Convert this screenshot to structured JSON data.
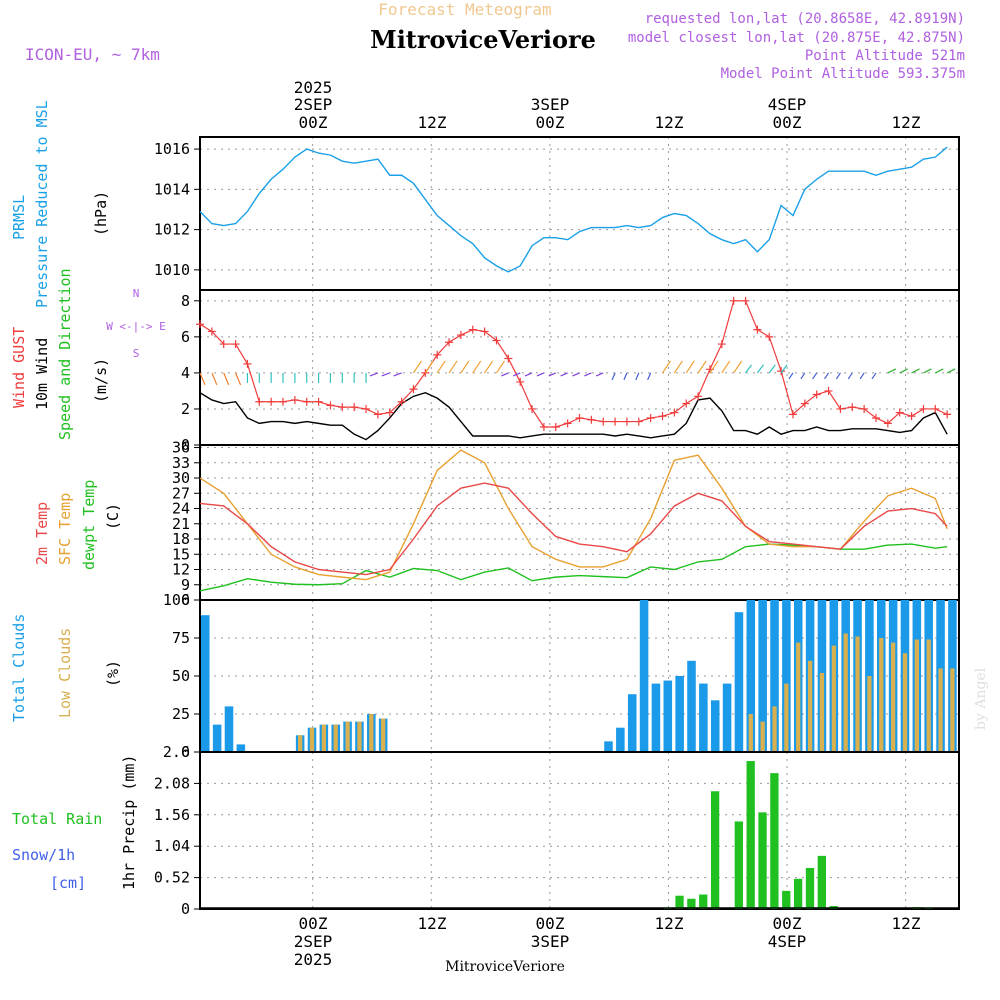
{
  "header": {
    "forecast_title": "Forecast Meteogram",
    "location_title": "MitroviceVeriore",
    "model": "ICON-EU, ~ 7km",
    "requested": "requested lon,lat (20.8658E, 42.8919N)",
    "closest": "model closest lon,lat (20.875E, 42.875N)",
    "point_alt": "Point Altitude 521m",
    "model_alt": "Model Point Altitude 593.375m",
    "footer": "MitroviceVeriore",
    "credit": "by Angel"
  },
  "time_axis": {
    "top": {
      "year": "2025",
      "day1": "2SEP",
      "day2": "3SEP",
      "day3": "4SEP",
      "ticks": [
        "00Z",
        "12Z",
        "00Z",
        "12Z",
        "00Z",
        "12Z"
      ]
    },
    "bottom": {
      "ticks": [
        "00Z",
        "12Z",
        "00Z",
        "12Z",
        "00Z",
        "12Z"
      ],
      "day1": "2SEP",
      "day2": "3SEP",
      "day3": "4SEP",
      "year": "2025"
    }
  },
  "panels": {
    "pressure": {
      "label1": "PRMSL",
      "label2": "Pressure Reduced to MSL",
      "unit": "(hPa)"
    },
    "wind": {
      "label1": "Wind GUST",
      "label2": "10m Wind",
      "label3": "Speed and Direction",
      "unit": "(m/s)",
      "compass_n": "N",
      "compass_s": "S",
      "compass_w": "W <-|-> E"
    },
    "temp": {
      "label1": "2m Temp",
      "label2": "SFC Temp",
      "label3": "dewpt Temp",
      "unit": "(C)"
    },
    "clouds": {
      "label1": "Total Clouds",
      "label2": "Low Clouds",
      "unit": "(%)"
    },
    "precip": {
      "label1": "Total  Rain",
      "label2": "Snow/1h",
      "label3": "[cm]",
      "unit": "1hr Precip (mm)"
    }
  },
  "colors": {
    "pressure": "#1aa0e8",
    "gust": "#f03c3c",
    "wind": "#000000",
    "temp2m": "#e84848",
    "sfc": "#e8a030",
    "dew": "#20c020",
    "total_clouds": "#1a9ae8",
    "low_clouds": "#d8b050",
    "precip": "#20c020",
    "title_orange": "#f0c080",
    "purple": "#b060e0"
  },
  "chart_data": [
    {
      "type": "line",
      "name": "PRMSL",
      "title": "Pressure Reduced to MSL",
      "ylabel": "hPa",
      "ylim": [
        1009,
        1016.6
      ],
      "yticks": [
        1010,
        1012,
        1014,
        1016
      ],
      "x": [
        0,
        1,
        2,
        3,
        4,
        5,
        6,
        7,
        8,
        9,
        10,
        11,
        12,
        13,
        14,
        15,
        16,
        17,
        18,
        19,
        20,
        21,
        22,
        23,
        24,
        25,
        26,
        27,
        28,
        29,
        30,
        31,
        32,
        33,
        34,
        35,
        36,
        37,
        38,
        39,
        40,
        41,
        42,
        43,
        44,
        45,
        46,
        47,
        48,
        49,
        50,
        51,
        52,
        53,
        54,
        55,
        56,
        57,
        58,
        59,
        60,
        61,
        62,
        63
      ],
      "values": [
        1012.9,
        1012.3,
        1012.2,
        1012.3,
        1012.9,
        1013.8,
        1014.5,
        1015.0,
        1015.6,
        1016.0,
        1015.8,
        1015.7,
        1015.4,
        1015.3,
        1015.4,
        1015.5,
        1014.7,
        1014.7,
        1014.3,
        1013.5,
        1012.7,
        1012.2,
        1011.7,
        1011.3,
        1010.6,
        1010.2,
        1009.9,
        1010.2,
        1011.2,
        1011.6,
        1011.6,
        1011.5,
        1011.9,
        1012.1,
        1012.1,
        1012.1,
        1012.2,
        1012.1,
        1012.2,
        1012.6,
        1012.8,
        1012.7,
        1012.3,
        1011.8,
        1011.5,
        1011.3,
        1011.5,
        1010.9,
        1011.5,
        1013.2,
        1012.7,
        1014.0,
        1014.5,
        1014.9,
        1014.9,
        1014.9,
        1014.9,
        1014.7,
        1014.9,
        1015.0,
        1015.1,
        1015.5,
        1015.6,
        1016.1
      ]
    },
    {
      "type": "line",
      "name": "Wind",
      "title": "Wind GUST / 10m Wind Speed and Direction",
      "ylabel": "m/s",
      "ylim": [
        0,
        8.6
      ],
      "yticks": [
        0,
        2,
        4,
        6,
        8
      ],
      "x": [
        0,
        1,
        2,
        3,
        4,
        5,
        6,
        7,
        8,
        9,
        10,
        11,
        12,
        13,
        14,
        15,
        16,
        17,
        18,
        19,
        20,
        21,
        22,
        23,
        24,
        25,
        26,
        27,
        28,
        29,
        30,
        31,
        32,
        33,
        34,
        35,
        36,
        37,
        38,
        39,
        40,
        41,
        42,
        43,
        44,
        45,
        46,
        47,
        48,
        49,
        50,
        51,
        52,
        53,
        54,
        55,
        56,
        57,
        58,
        59,
        60,
        61,
        62,
        63
      ],
      "gust": [
        6.7,
        6.3,
        5.6,
        5.6,
        4.5,
        2.4,
        2.4,
        2.4,
        2.5,
        2.4,
        2.4,
        2.2,
        2.1,
        2.1,
        2.0,
        1.7,
        1.8,
        2.4,
        3.1,
        4.0,
        5.0,
        5.7,
        6.1,
        6.4,
        6.3,
        5.8,
        4.8,
        3.5,
        2.0,
        1.0,
        1.0,
        1.2,
        1.5,
        1.4,
        1.3,
        1.3,
        1.3,
        1.3,
        1.5,
        1.6,
        1.8,
        2.3,
        2.7,
        4.2,
        5.6,
        8.0,
        8.0,
        6.4,
        6.0,
        4.1,
        1.7,
        2.3,
        2.8,
        3.0,
        2.0,
        2.1,
        2.0,
        1.5,
        1.2,
        1.8,
        1.6,
        2.0,
        2.0,
        1.7
      ],
      "wind10m": [
        2.9,
        2.5,
        2.3,
        2.4,
        1.5,
        1.2,
        1.3,
        1.3,
        1.2,
        1.3,
        1.2,
        1.1,
        1.1,
        0.6,
        0.3,
        0.8,
        1.5,
        2.3,
        2.7,
        2.9,
        2.6,
        2.1,
        1.3,
        0.5,
        0.5,
        0.5,
        0.5,
        0.4,
        0.5,
        0.6,
        0.6,
        0.6,
        0.6,
        0.6,
        0.6,
        0.5,
        0.6,
        0.5,
        0.4,
        0.5,
        0.6,
        1.2,
        2.5,
        2.6,
        1.9,
        0.8,
        0.8,
        0.6,
        1.0,
        0.6,
        0.8,
        0.8,
        1.0,
        0.8,
        0.8,
        0.9,
        0.9,
        0.9,
        0.8,
        0.7,
        0.8,
        1.5,
        1.8,
        0.6
      ]
    },
    {
      "type": "line",
      "name": "Temperature",
      "title": "2m Temp / SFC Temp / dewpt Temp",
      "ylabel": "C",
      "ylim": [
        6,
        36.5
      ],
      "yticks": [
        6,
        9,
        12,
        15,
        18,
        21,
        24,
        27,
        30,
        33,
        36
      ],
      "x": [
        0,
        2,
        4,
        6,
        8,
        10,
        12,
        14,
        16,
        18,
        20,
        22,
        24,
        26,
        28,
        30,
        32,
        34,
        36,
        38,
        40,
        42,
        44,
        46,
        48,
        50,
        52,
        54,
        56,
        58,
        60,
        62,
        63
      ],
      "temp2m": [
        25.0,
        24.5,
        21.0,
        16.5,
        13.5,
        12.0,
        11.5,
        11.0,
        12.0,
        18.0,
        24.5,
        28.0,
        29.0,
        28.0,
        23.0,
        18.5,
        17.0,
        16.5,
        15.5,
        19.0,
        24.5,
        27.0,
        25.5,
        20.5,
        17.5,
        17.0,
        16.5,
        16.0,
        20.5,
        23.5,
        24.0,
        23.0,
        20.5
      ],
      "sfc": [
        30.0,
        27.0,
        21.0,
        15.0,
        12.5,
        11.0,
        10.5,
        10.0,
        11.5,
        21.0,
        31.5,
        35.5,
        33.0,
        24.0,
        16.5,
        14.0,
        12.5,
        12.5,
        14.0,
        22.0,
        33.5,
        34.5,
        28.0,
        20.5,
        17.0,
        16.5,
        16.5,
        16.0,
        21.5,
        26.5,
        28.0,
        26.0,
        20.0
      ],
      "dew": [
        7.8,
        8.8,
        10.2,
        9.5,
        9.1,
        9.0,
        9.2,
        11.8,
        10.5,
        12.2,
        11.8,
        10.0,
        11.5,
        12.3,
        9.8,
        10.5,
        10.8,
        10.6,
        10.4,
        12.5,
        12.0,
        13.5,
        14.0,
        16.5,
        17.0,
        16.8,
        16.5,
        16.0,
        16.0,
        16.8,
        17.0,
        16.2,
        16.5
      ]
    },
    {
      "type": "bar",
      "name": "Clouds",
      "title": "Total Clouds / Low Clouds",
      "ylabel": "%",
      "ylim": [
        0,
        100
      ],
      "yticks": [
        0,
        25,
        50,
        75,
        100
      ],
      "x": [
        0,
        1,
        2,
        3,
        4,
        5,
        6,
        7,
        8,
        9,
        10,
        11,
        12,
        13,
        14,
        15,
        16,
        17,
        18,
        19,
        20,
        21,
        22,
        23,
        24,
        25,
        26,
        27,
        28,
        29,
        30,
        31,
        32,
        33,
        34,
        35,
        36,
        37,
        38,
        39,
        40,
        41,
        42,
        43,
        44,
        45,
        46,
        47,
        48,
        49,
        50,
        51,
        52,
        53,
        54,
        55,
        56,
        57,
        58,
        59,
        60,
        61,
        62,
        63
      ],
      "total": [
        90,
        18,
        30,
        5,
        0,
        0,
        0,
        0,
        11,
        16,
        18,
        18,
        20,
        20,
        25,
        22,
        0,
        0,
        0,
        0,
        0,
        0,
        0,
        0,
        0,
        0,
        0,
        0,
        0,
        0,
        0,
        0,
        0,
        0,
        7,
        16,
        38,
        100,
        45,
        47,
        50,
        60,
        45,
        34,
        45,
        92,
        100,
        100,
        100,
        100,
        100,
        100,
        100,
        100,
        100,
        100,
        100,
        100,
        100,
        100,
        100,
        100,
        100,
        100
      ],
      "low": [
        0,
        0,
        0,
        0,
        0,
        0,
        0,
        0,
        11,
        16,
        18,
        18,
        20,
        20,
        25,
        22,
        0,
        0,
        0,
        0,
        0,
        0,
        0,
        0,
        0,
        0,
        0,
        0,
        0,
        0,
        0,
        0,
        0,
        0,
        0,
        0,
        0,
        0,
        0,
        0,
        0,
        0,
        0,
        0,
        0,
        0,
        25,
        20,
        30,
        45,
        72,
        60,
        52,
        70,
        78,
        76,
        50,
        75,
        72,
        65,
        74,
        74,
        55,
        55
      ]
    },
    {
      "type": "bar",
      "name": "Precipitation",
      "title": "1hr Precip",
      "ylabel": "mm",
      "ylim": [
        0,
        2.6
      ],
      "yticks": [
        0,
        0.52,
        1.04,
        1.56,
        2.08,
        2.6
      ],
      "x": [
        38,
        39,
        40,
        41,
        42,
        43,
        44,
        45,
        46,
        47,
        48,
        49,
        50,
        51,
        52,
        53,
        54,
        55,
        56,
        57,
        58,
        59,
        60,
        61
      ],
      "values": [
        0,
        0.02,
        0.22,
        0.17,
        0.24,
        1.95,
        0.0,
        1.45,
        2.45,
        1.6,
        2.25,
        0.3,
        0.5,
        0.68,
        0.88,
        0.05,
        0,
        0,
        0,
        0,
        0,
        0,
        0.03,
        0.02
      ]
    }
  ]
}
